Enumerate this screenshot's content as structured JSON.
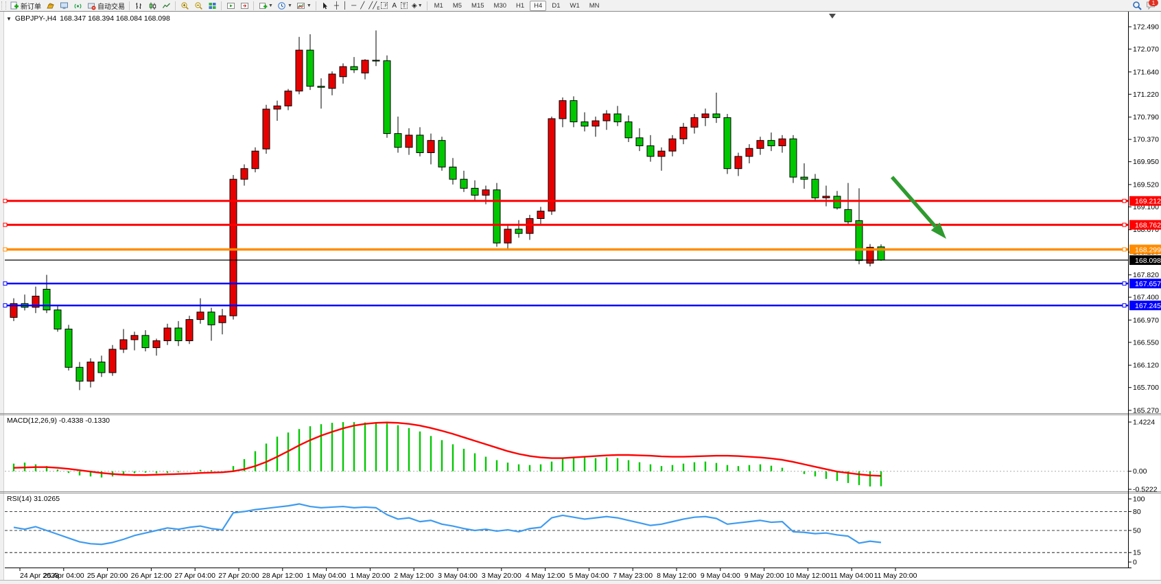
{
  "toolbar": {
    "new_order_label": "新订单",
    "auto_trading_label": "自动交易",
    "timeframe_buttons": [
      "M1",
      "M5",
      "M15",
      "M30",
      "H1",
      "H4",
      "D1",
      "W1",
      "MN"
    ],
    "active_timeframe": "H4",
    "notification_badge": "1",
    "glyphs": {
      "vertical_line": "│",
      "horizontal_line": "─",
      "trendline": "╱",
      "crosshair": "┼",
      "text": "A",
      "text_label": "T",
      "arrows_tool": "◈"
    }
  },
  "chart": {
    "collapse_arrow": "▼",
    "symbol": "GBPJPY-,H4",
    "ohlc_line": "168.347 168.394 168.084 168.098",
    "macd_label": "MACD(12,26,9) -0.4338 -0.1330",
    "rsi_label": "RSI(14) 31.0265"
  },
  "chart_data": {
    "type": "candlestick+indicators",
    "panes": [
      {
        "type": "candlestick",
        "symbol": "GBPJPY-",
        "timeframe": "H4",
        "current_bar": {
          "open": 168.347,
          "high": 168.394,
          "low": 168.084,
          "close": 168.098
        },
        "up_color": "#e60000",
        "down_color": "#00c800",
        "wick_color": "#000000",
        "y_ticks": [
          "172.490",
          "172.070",
          "171.640",
          "171.220",
          "170.790",
          "170.370",
          "169.950",
          "169.520",
          "169.100",
          "168.670",
          "168.250",
          "167.820",
          "167.400",
          "166.970",
          "166.550",
          "166.120",
          "165.700",
          "165.270"
        ],
        "x_labels": [
          "24 Apr 2023",
          "25 Apr 04:00",
          "25 Apr 20:00",
          "26 Apr 12:00",
          "27 Apr 04:00",
          "27 Apr 20:00",
          "28 Apr 12:00",
          "1 May 04:00",
          "1 May 20:00",
          "2 May 12:00",
          "3 May 04:00",
          "3 May 20:00",
          "4 May 12:00",
          "5 May 04:00",
          "7 May 23:00",
          "8 May 12:00",
          "9 May 04:00",
          "9 May 20:00",
          "10 May 12:00",
          "11 May 04:00",
          "11 May 20:00"
        ],
        "candles": [
          [
            167.02,
            167.38,
            166.95,
            167.28
          ],
          [
            167.28,
            167.45,
            167.15,
            167.21
          ],
          [
            167.21,
            167.6,
            167.1,
            167.42
          ],
          [
            167.55,
            167.82,
            167.1,
            167.16
          ],
          [
            167.16,
            167.25,
            166.75,
            166.8
          ],
          [
            166.8,
            166.88,
            166.02,
            166.08
          ],
          [
            166.08,
            166.18,
            165.65,
            165.82
          ],
          [
            165.82,
            166.25,
            165.7,
            166.18
          ],
          [
            166.18,
            166.3,
            165.9,
            165.98
          ],
          [
            165.98,
            166.5,
            165.92,
            166.42
          ],
          [
            166.42,
            166.8,
            166.35,
            166.6
          ],
          [
            166.6,
            166.75,
            166.4,
            166.68
          ],
          [
            166.68,
            166.78,
            166.38,
            166.45
          ],
          [
            166.45,
            166.62,
            166.3,
            166.58
          ],
          [
            166.58,
            166.9,
            166.5,
            166.82
          ],
          [
            166.82,
            166.95,
            166.48,
            166.58
          ],
          [
            166.58,
            167.05,
            166.52,
            166.98
          ],
          [
            166.98,
            167.38,
            166.9,
            167.12
          ],
          [
            167.12,
            167.2,
            166.58,
            166.88
          ],
          [
            166.92,
            167.18,
            166.7,
            167.05
          ],
          [
            167.05,
            169.7,
            166.98,
            169.62
          ],
          [
            169.62,
            169.9,
            169.5,
            169.82
          ],
          [
            169.82,
            170.22,
            169.75,
            170.15
          ],
          [
            170.19,
            171.02,
            170.1,
            170.94
          ],
          [
            170.94,
            171.1,
            170.72,
            171.0
          ],
          [
            171.0,
            171.32,
            170.92,
            171.28
          ],
          [
            171.28,
            172.3,
            171.22,
            172.05
          ],
          [
            172.05,
            172.35,
            171.3,
            171.37
          ],
          [
            171.37,
            171.52,
            170.95,
            171.35
          ],
          [
            171.33,
            171.65,
            171.2,
            171.6
          ],
          [
            171.55,
            171.8,
            171.42,
            171.74
          ],
          [
            171.74,
            171.92,
            171.62,
            171.68
          ],
          [
            171.62,
            171.88,
            171.5,
            171.86
          ],
          [
            171.86,
            172.42,
            171.75,
            171.85
          ],
          [
            171.85,
            171.95,
            170.4,
            170.48
          ],
          [
            170.48,
            170.8,
            170.12,
            170.22
          ],
          [
            170.22,
            170.58,
            170.08,
            170.45
          ],
          [
            170.45,
            170.6,
            170.05,
            170.12
          ],
          [
            170.12,
            170.48,
            169.9,
            170.35
          ],
          [
            170.35,
            170.42,
            169.78,
            169.85
          ],
          [
            169.85,
            170.02,
            169.52,
            169.62
          ],
          [
            169.62,
            169.78,
            169.38,
            169.45
          ],
          [
            169.45,
            169.6,
            169.22,
            169.32
          ],
          [
            169.32,
            169.5,
            169.15,
            169.42
          ],
          [
            169.42,
            169.55,
            168.35,
            168.42
          ],
          [
            168.42,
            168.78,
            168.3,
            168.68
          ],
          [
            168.68,
            168.85,
            168.52,
            168.6
          ],
          [
            168.6,
            168.95,
            168.48,
            168.88
          ],
          [
            168.88,
            169.1,
            168.75,
            169.02
          ],
          [
            169.02,
            170.8,
            168.95,
            170.76
          ],
          [
            170.76,
            171.16,
            170.6,
            171.1
          ],
          [
            171.1,
            171.18,
            170.6,
            170.7
          ],
          [
            170.7,
            170.88,
            170.52,
            170.62
          ],
          [
            170.62,
            170.8,
            170.42,
            170.72
          ],
          [
            170.72,
            170.92,
            170.55,
            170.85
          ],
          [
            170.85,
            171.0,
            170.62,
            170.7
          ],
          [
            170.7,
            170.82,
            170.32,
            170.4
          ],
          [
            170.4,
            170.58,
            170.15,
            170.25
          ],
          [
            170.25,
            170.45,
            169.95,
            170.05
          ],
          [
            170.05,
            170.22,
            169.78,
            170.15
          ],
          [
            170.15,
            170.45,
            170.05,
            170.38
          ],
          [
            170.38,
            170.68,
            170.28,
            170.6
          ],
          [
            170.6,
            170.85,
            170.48,
            170.78
          ],
          [
            170.78,
            170.95,
            170.62,
            170.85
          ],
          [
            170.85,
            171.25,
            170.68,
            170.78
          ],
          [
            170.78,
            170.85,
            169.72,
            169.82
          ],
          [
            169.82,
            170.12,
            169.68,
            170.05
          ],
          [
            170.05,
            170.28,
            169.92,
            170.2
          ],
          [
            170.2,
            170.42,
            170.08,
            170.35
          ],
          [
            170.35,
            170.5,
            170.15,
            170.25
          ],
          [
            170.25,
            170.45,
            170.12,
            170.38
          ],
          [
            170.38,
            170.45,
            169.55,
            169.66
          ],
          [
            169.66,
            169.92,
            169.44,
            169.62
          ],
          [
            169.62,
            169.72,
            169.2,
            169.27
          ],
          [
            169.27,
            169.5,
            169.11,
            169.3
          ],
          [
            169.3,
            169.4,
            169.05,
            169.08
          ],
          [
            169.05,
            169.55,
            168.78,
            168.82
          ],
          [
            168.84,
            169.45,
            168.02,
            168.09
          ],
          [
            168.04,
            168.4,
            167.98,
            168.34
          ],
          [
            168.347,
            168.394,
            168.084,
            168.098
          ]
        ],
        "horizontal_lines": [
          {
            "price": 169.212,
            "color": "#ff0000",
            "width": 3
          },
          {
            "price": 168.762,
            "color": "#ff0000",
            "width": 3
          },
          {
            "price": 168.299,
            "color": "#ff8c00",
            "width": 3.5
          },
          {
            "price": 167.657,
            "color": "#0000ff",
            "width": 2.5
          },
          {
            "price": 167.245,
            "color": "#0000ff",
            "width": 2.5
          }
        ],
        "current_price": {
          "value": 168.098,
          "label": "168.098",
          "color": "#000000"
        },
        "annotation_arrow": {
          "color": "#2e9b2e",
          "direction": "down-right"
        }
      },
      {
        "type": "macd",
        "label": "MACD(12,26,9) -0.4338 -0.1330",
        "params": [
          12,
          26,
          9
        ],
        "current_values": {
          "macd": -0.4338,
          "signal": -0.133
        },
        "y_ticks": [
          "1.4224",
          "0.00",
          "-0.5222"
        ],
        "y_tick_values": [
          1.4224,
          0.0,
          -0.5222
        ],
        "histogram_color": "#00c800",
        "signal_color": "#ff0000",
        "histogram": [
          0.22,
          0.25,
          0.2,
          0.15,
          0.05,
          -0.05,
          -0.12,
          -0.15,
          -0.18,
          -0.15,
          -0.1,
          -0.06,
          -0.04,
          -0.06,
          -0.05,
          -0.03,
          0.0,
          0.04,
          0.03,
          0.0,
          0.15,
          0.35,
          0.58,
          0.8,
          1.0,
          1.12,
          1.22,
          1.3,
          1.36,
          1.4,
          1.42,
          1.42,
          1.41,
          1.4,
          1.38,
          1.33,
          1.25,
          1.15,
          1.02,
          0.9,
          0.78,
          0.65,
          0.52,
          0.42,
          0.32,
          0.25,
          0.2,
          0.18,
          0.2,
          0.28,
          0.38,
          0.42,
          0.4,
          0.38,
          0.4,
          0.38,
          0.32,
          0.26,
          0.2,
          0.15,
          0.18,
          0.22,
          0.26,
          0.28,
          0.24,
          0.18,
          0.15,
          0.18,
          0.2,
          0.16,
          0.1,
          0.0,
          -0.08,
          -0.15,
          -0.22,
          -0.28,
          -0.34,
          -0.4,
          -0.44,
          -0.4338
        ],
        "signal_line": [
          0.1,
          0.11,
          0.12,
          0.12,
          0.1,
          0.07,
          0.03,
          -0.01,
          -0.05,
          -0.08,
          -0.1,
          -0.11,
          -0.11,
          -0.1,
          -0.09,
          -0.08,
          -0.07,
          -0.05,
          -0.04,
          -0.03,
          0.0,
          0.06,
          0.15,
          0.27,
          0.42,
          0.58,
          0.75,
          0.9,
          1.03,
          1.14,
          1.24,
          1.32,
          1.37,
          1.4,
          1.41,
          1.4,
          1.37,
          1.32,
          1.25,
          1.17,
          1.08,
          0.98,
          0.88,
          0.78,
          0.68,
          0.58,
          0.5,
          0.44,
          0.4,
          0.38,
          0.38,
          0.4,
          0.42,
          0.44,
          0.46,
          0.47,
          0.47,
          0.46,
          0.45,
          0.43,
          0.42,
          0.42,
          0.43,
          0.44,
          0.45,
          0.45,
          0.44,
          0.42,
          0.4,
          0.37,
          0.33,
          0.27,
          0.2,
          0.13,
          0.06,
          -0.01,
          -0.05,
          -0.09,
          -0.12,
          -0.133
        ]
      },
      {
        "type": "rsi",
        "label": "RSI(14) 31.0265",
        "period": 14,
        "current_value": 31.0265,
        "levels": [
          80,
          50,
          15
        ],
        "y_ticks": [
          "100",
          "80",
          "50",
          "15",
          "0"
        ],
        "y_tick_values": [
          100,
          80,
          50,
          15,
          0
        ],
        "line_color": "#3e9bf0",
        "series": [
          55,
          52,
          56,
          50,
          44,
          38,
          32,
          29,
          28,
          31,
          36,
          42,
          46,
          50,
          54,
          52,
          55,
          57,
          53,
          51,
          78,
          80,
          83,
          85,
          87,
          89,
          92,
          88,
          86,
          87,
          88,
          86,
          87,
          86,
          75,
          68,
          70,
          64,
          66,
          60,
          57,
          53,
          50,
          52,
          49,
          51,
          48,
          53,
          55,
          70,
          74,
          71,
          68,
          70,
          72,
          70,
          66,
          62,
          58,
          60,
          64,
          68,
          71,
          72,
          69,
          60,
          62,
          64,
          66,
          63,
          64,
          48,
          47,
          45,
          46,
          43,
          41,
          30,
          33,
          31
        ]
      }
    ]
  }
}
